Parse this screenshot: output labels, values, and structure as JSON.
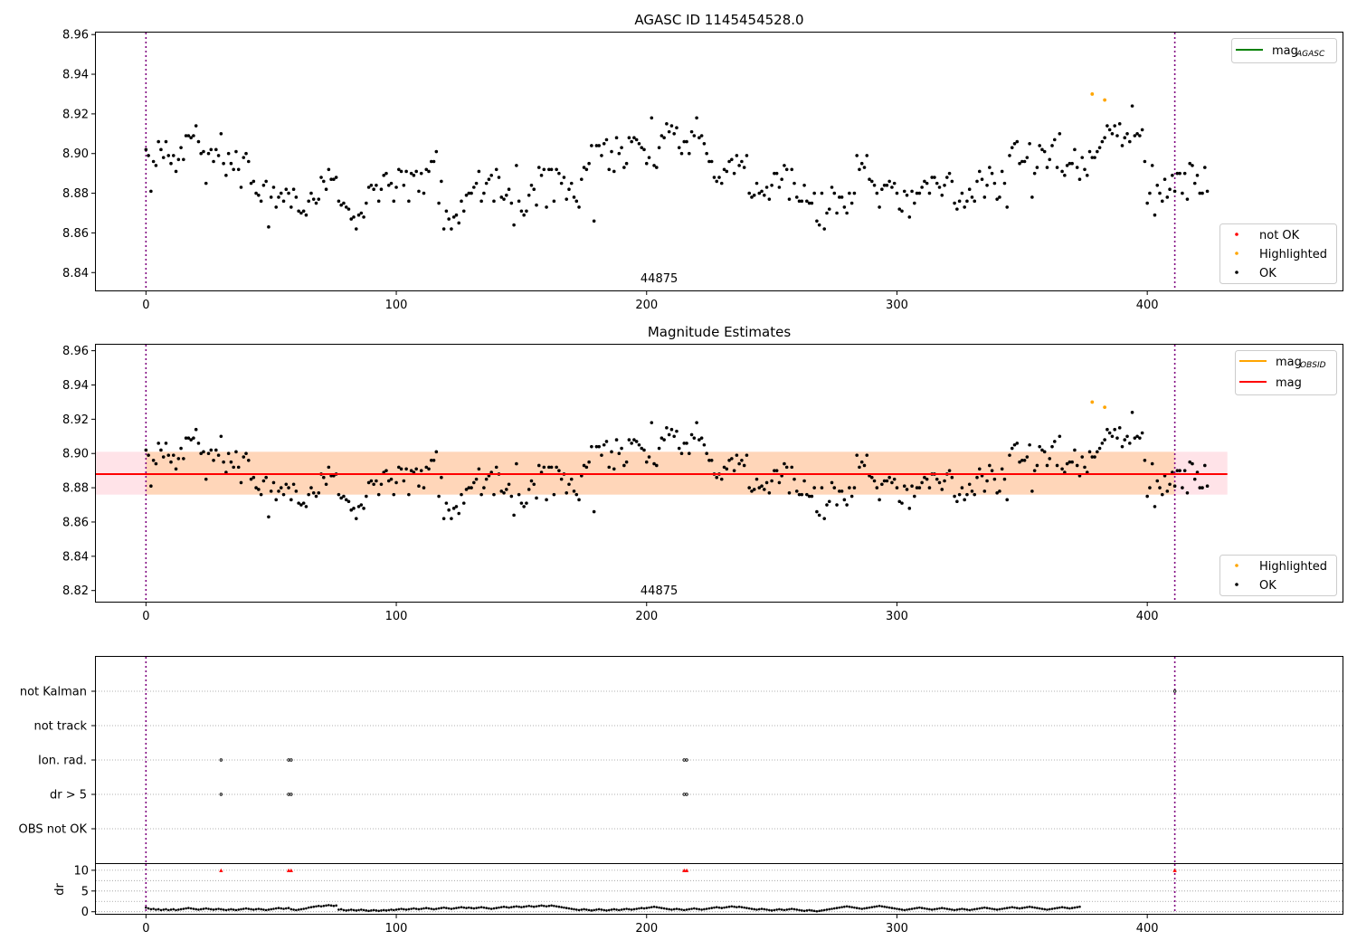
{
  "figure": {
    "title": "AGASC ID 1145454528.0",
    "obsid_label": "44875"
  },
  "chart_data": [
    {
      "id": "mag_agasc",
      "type": "scatter",
      "title": "AGASC ID 1145454528.0",
      "xlim": [
        -20,
        478
      ],
      "ylim": [
        8.831,
        8.961
      ],
      "xticks": [
        0,
        100,
        200,
        300,
        400
      ],
      "yticks": [
        8.84,
        8.86,
        8.88,
        8.9,
        8.92,
        8.94,
        8.96
      ],
      "ytick_labels": [
        "8.84",
        "8.86",
        "8.88",
        "8.90",
        "8.92",
        "8.94",
        "8.96"
      ],
      "vlines": [
        0,
        411
      ],
      "obsid_label": "44875",
      "legend_lines": [
        {
          "label": "mag",
          "sub": "AGASC",
          "color": "#008000"
        }
      ],
      "legend_points": [
        {
          "label": "not OK",
          "color": "#ff0000"
        },
        {
          "label": "Highlighted",
          "color": "#ffa500"
        },
        {
          "label": "OK",
          "color": "#000000"
        }
      ],
      "highlighted": [
        [
          378,
          8.93
        ],
        [
          383,
          8.927
        ]
      ],
      "not_ok": []
    },
    {
      "id": "mag_estimates",
      "type": "scatter",
      "title": "Magnitude Estimates",
      "xlim": [
        -20,
        478
      ],
      "ylim": [
        8.8135,
        8.9635
      ],
      "xticks": [
        0,
        100,
        200,
        300,
        400
      ],
      "yticks": [
        8.82,
        8.84,
        8.86,
        8.88,
        8.9,
        8.92,
        8.94,
        8.96
      ],
      "ytick_labels": [
        "8.82",
        "8.84",
        "8.86",
        "8.88",
        "8.90",
        "8.92",
        "8.94",
        "8.96"
      ],
      "vlines": [
        0,
        411
      ],
      "obsid_label": "44875",
      "mag": 8.888,
      "mag_band": [
        8.876,
        8.901
      ],
      "band_x": [
        -20,
        432
      ],
      "legend_lines": [
        {
          "label": "mag",
          "sub": "OBSID",
          "color": "#ffa500"
        },
        {
          "label": "mag",
          "sub": "",
          "color": "#ff0000"
        }
      ],
      "legend_points": [
        {
          "label": "Highlighted",
          "color": "#ffa500"
        },
        {
          "label": "OK",
          "color": "#000000"
        }
      ],
      "highlighted": [
        [
          378,
          8.93
        ],
        [
          383,
          8.927
        ]
      ]
    },
    {
      "id": "flags",
      "type": "scatter",
      "categories": [
        "not Kalman",
        "not track",
        "Ion. rad.",
        "dr > 5",
        "OBS not OK"
      ],
      "xlim": [
        -20,
        478
      ],
      "vlines": [
        0,
        411
      ],
      "points": {
        "not Kalman": [
          411
        ],
        "not track": [],
        "Ion. rad.": [
          30,
          57,
          58,
          215,
          216
        ],
        "dr > 5": [
          30,
          57,
          58,
          215,
          216
        ],
        "OBS not OK": []
      }
    },
    {
      "id": "dr",
      "type": "scatter",
      "ylabel": "dr",
      "xlim": [
        -20,
        478
      ],
      "ylim": [
        -0.5,
        11.5
      ],
      "xticks": [
        0,
        100,
        200,
        300,
        400
      ],
      "xtick_labels": [
        "0",
        "100",
        "200",
        "300",
        "400"
      ],
      "yticks": [
        0,
        5,
        10
      ],
      "ytick_labels": [
        "0",
        "5",
        "10"
      ],
      "vlines": [
        0,
        411
      ],
      "capped": [
        30,
        57,
        58,
        215,
        216,
        411
      ],
      "cap_value": 10
    }
  ],
  "mag_series": [
    8.902,
    8.899,
    8.881,
    8.896,
    8.894,
    8.906,
    8.902,
    8.898,
    8.906,
    8.899,
    8.895,
    8.899,
    8.891,
    8.897,
    8.903,
    8.897,
    8.909,
    8.909,
    8.908,
    8.909,
    8.914,
    8.906,
    8.9,
    8.901,
    8.885,
    8.9,
    8.902,
    8.896,
    8.902,
    8.899,
    8.91,
    8.895,
    8.889,
    8.9,
    8.895,
    8.892,
    8.901,
    8.892,
    8.883,
    8.898,
    8.9,
    8.896,
    8.885,
    8.886,
    8.88,
    8.879,
    8.876,
    8.884,
    8.886,
    8.863,
    8.878,
    8.883,
    8.873,
    8.878,
    8.88,
    8.876,
    8.882,
    8.88,
    8.873,
    8.882,
    8.878,
    8.871,
    8.87,
    8.871,
    8.869,
    8.876,
    8.88,
    8.877,
    8.875,
    8.877,
    8.888,
    8.886,
    8.882,
    8.892,
    8.887,
    8.887,
    8.888,
    8.876,
    8.874,
    8.875,
    8.873,
    8.872,
    8.867,
    8.868,
    8.862,
    8.869,
    8.87,
    8.868,
    8.875,
    8.883,
    8.884,
    8.882,
    8.884,
    8.876,
    8.882,
    8.889,
    8.89,
    8.884,
    8.885,
    8.876,
    8.883,
    8.892,
    8.891,
    8.884,
    8.891,
    8.876,
    8.89,
    8.889,
    8.891,
    8.881,
    8.89,
    8.88,
    8.892,
    8.891,
    8.896,
    8.896,
    8.901,
    8.875,
    8.886,
    8.862,
    8.871,
    8.867,
    8.862,
    8.868,
    8.869,
    8.865,
    8.876,
    8.871,
    8.879,
    8.88,
    8.88,
    8.883,
    8.885,
    8.891,
    8.876,
    8.88,
    8.885,
    8.887,
    8.889,
    8.876,
    8.892,
    8.888,
    8.878,
    8.877,
    8.879,
    8.882,
    8.875,
    8.864,
    8.894,
    8.876,
    8.871,
    8.869,
    8.871,
    8.879,
    8.884,
    8.882,
    8.874,
    8.893,
    8.889,
    8.892,
    8.873,
    8.892,
    8.892,
    8.876,
    8.892,
    8.89,
    8.885,
    8.888,
    8.877,
    8.882,
    8.885,
    8.878,
    8.876,
    8.873,
    8.887,
    8.893,
    8.892,
    8.895,
    8.904,
    8.866,
    8.904,
    8.904,
    8.899,
    8.905,
    8.907,
    8.892,
    8.901,
    8.891,
    8.908,
    8.9,
    8.903,
    8.893,
    8.895,
    8.908,
    8.906,
    8.908,
    8.907,
    8.905,
    8.903,
    8.902,
    8.895,
    8.898,
    8.918,
    8.894,
    8.893,
    8.903,
    8.909,
    8.908,
    8.915,
    8.911,
    8.914,
    8.91,
    8.913,
    8.903,
    8.9,
    8.906,
    8.906,
    8.9,
    8.911,
    8.909,
    8.918,
    8.908,
    8.909,
    8.905,
    8.9,
    8.896,
    8.896,
    8.888,
    8.886,
    8.888,
    8.885,
    8.892,
    8.891,
    8.896,
    8.897,
    8.89,
    8.899,
    8.894,
    8.896,
    8.893,
    8.899,
    8.88,
    8.878,
    8.879,
    8.885,
    8.88,
    8.881,
    8.879,
    8.883,
    8.877,
    8.884,
    8.89,
    8.89,
    8.883,
    8.887,
    8.894,
    8.892,
    8.877,
    8.892,
    8.885,
    8.878,
    8.876,
    8.876,
    8.884,
    8.876,
    8.875,
    8.875,
    8.88,
    8.866,
    8.864,
    8.88,
    8.862,
    8.87,
    8.872,
    8.883,
    8.88,
    8.87,
    8.878,
    8.878,
    8.873,
    8.87,
    8.88,
    8.875,
    8.88,
    8.899,
    8.892,
    8.895,
    8.893,
    8.899,
    8.887,
    8.886,
    8.884,
    8.88,
    8.873,
    8.882,
    8.884,
    8.884,
    8.886,
    8.883,
    8.885,
    8.88,
    8.872,
    8.871,
    8.881,
    8.879,
    8.868,
    8.881,
    8.875,
    8.88,
    8.88,
    8.883,
    8.886,
    8.885,
    8.88,
    8.888,
    8.888,
    8.885,
    8.883,
    8.879,
    8.884,
    8.888,
    8.89,
    8.886,
    8.875,
    8.872,
    8.876,
    8.88,
    8.873,
    8.876,
    8.882,
    8.878,
    8.876,
    8.886,
    8.891,
    8.887,
    8.878,
    8.884,
    8.893,
    8.89,
    8.885,
    8.877,
    8.878,
    8.891,
    8.885,
    8.873,
    8.899,
    8.903,
    8.905,
    8.906,
    8.895,
    8.896,
    8.896,
    8.898,
    8.905,
    8.878,
    8.89,
    8.893,
    8.904,
    8.902,
    8.901,
    8.893,
    8.897,
    8.904,
    8.907,
    8.893,
    8.91,
    8.891,
    8.889,
    8.894,
    8.895,
    8.895,
    8.902,
    8.893,
    8.887,
    8.898,
    8.892,
    8.889,
    8.901,
    8.898,
    8.898,
    8.901,
    8.903,
    8.906,
    8.908,
    8.914,
    8.912,
    8.91,
    8.914,
    8.909,
    8.915,
    8.904,
    8.908,
    8.91,
    8.906,
    8.924,
    8.909,
    8.91,
    8.909,
    8.912,
    8.896,
    8.875,
    8.88,
    8.894,
    8.869,
    8.884,
    8.88,
    8.876,
    8.887,
    8.878,
    8.882,
    8.889,
    8.881,
    8.89,
    8.89,
    8.88,
    8.89,
    8.877,
    8.895,
    8.894,
    8.885,
    8.889,
    8.88,
    8.88,
    8.893,
    8.881
  ],
  "dr_series": [
    1.0,
    0.8,
    0.6,
    0.7,
    0.5,
    0.6,
    0.4,
    0.5,
    0.6,
    0.4,
    0.5,
    0.6,
    0.4,
    0.5,
    0.6,
    0.7,
    0.8,
    0.9,
    0.8,
    0.7,
    0.6,
    0.5,
    0.6,
    0.7,
    0.8,
    0.7,
    0.6,
    0.5,
    0.6,
    0.7,
    0.6,
    0.5,
    0.4,
    0.5,
    0.6,
    0.5,
    0.4,
    0.5,
    0.6,
    0.7,
    0.8,
    0.7,
    0.6,
    0.5,
    0.6,
    0.7,
    0.6,
    0.5,
    0.4,
    0.5,
    0.6,
    0.7,
    0.8,
    0.9,
    0.8,
    0.7,
    0.8,
    0.9,
    0.6,
    0.5,
    0.4,
    0.5,
    0.6,
    0.7,
    0.8,
    1.0,
    1.1,
    1.2,
    1.3,
    1.4,
    1.3,
    1.4,
    1.5,
    1.6,
    1.5,
    1.4,
    1.5,
    0.5,
    0.6,
    0.4,
    0.3,
    0.4,
    0.5,
    0.4,
    0.3,
    0.4,
    0.5,
    0.4,
    0.3,
    0.2,
    0.3,
    0.4,
    0.3,
    0.2,
    0.3,
    0.4,
    0.3,
    0.4,
    0.5,
    0.4,
    0.5,
    0.6,
    0.7,
    0.6,
    0.5,
    0.6,
    0.7,
    0.8,
    0.7,
    0.6,
    0.7,
    0.8,
    0.9,
    0.8,
    0.7,
    0.6,
    0.7,
    0.8,
    0.9,
    1.0,
    0.9,
    0.8,
    0.7,
    0.8,
    0.9,
    1.0,
    1.1,
    1.0,
    0.9,
    1.0,
    0.9,
    0.8,
    0.9,
    1.0,
    1.1,
    1.0,
    0.9,
    0.8,
    0.7,
    0.8,
    0.9,
    1.0,
    1.1,
    1.2,
    1.1,
    1.0,
    1.1,
    1.2,
    1.3,
    1.2,
    1.1,
    1.2,
    1.3,
    1.4,
    1.3,
    1.2,
    1.3,
    1.4,
    1.5,
    1.4,
    1.3,
    1.4,
    1.5,
    1.4,
    1.3,
    1.2,
    1.1,
    1.0,
    0.9,
    0.8,
    0.7,
    0.6,
    0.5,
    0.4,
    0.5,
    0.6,
    0.5,
    0.4,
    0.3,
    0.4,
    0.5,
    0.6,
    0.5,
    0.4,
    0.3,
    0.4,
    0.5,
    0.6,
    0.5,
    0.4,
    0.5,
    0.6,
    0.7,
    0.6,
    0.5,
    0.6,
    0.7,
    0.8,
    0.9,
    0.8,
    0.9,
    1.0,
    1.1,
    1.2,
    1.1,
    1.0,
    0.9,
    0.8,
    0.7,
    0.6,
    0.5,
    0.6,
    0.7,
    0.6,
    0.5,
    0.4,
    0.5,
    0.6,
    0.7,
    0.8,
    0.7,
    0.6,
    0.5,
    0.6,
    0.7,
    0.8,
    0.9,
    1.0,
    1.1,
    1.0,
    0.9,
    1.0,
    1.1,
    1.2,
    1.3,
    1.2,
    1.1,
    1.2,
    1.1,
    1.0,
    0.9,
    0.8,
    0.7,
    0.6,
    0.5,
    0.6,
    0.7,
    0.6,
    0.5,
    0.4,
    0.3,
    0.4,
    0.5,
    0.6,
    0.5,
    0.4,
    0.5,
    0.6,
    0.7,
    0.6,
    0.5,
    0.4,
    0.3,
    0.2,
    0.3,
    0.4,
    0.3,
    0.2,
    0.1,
    0.2,
    0.3,
    0.4,
    0.5,
    0.6,
    0.7,
    0.8,
    0.9,
    1.0,
    1.1,
    1.2,
    1.3,
    1.2,
    1.1,
    1.0,
    0.9,
    0.8,
    0.7,
    0.8,
    0.9,
    1.0,
    1.1,
    1.2,
    1.3,
    1.4,
    1.3,
    1.2,
    1.1,
    1.0,
    0.9,
    0.8,
    0.7,
    0.6,
    0.5,
    0.4,
    0.5,
    0.6,
    0.7,
    0.8,
    0.9,
    1.0,
    0.9,
    0.8,
    0.7,
    0.6,
    0.5,
    0.6,
    0.7,
    0.8,
    0.9,
    0.8,
    0.7,
    0.6,
    0.5,
    0.4,
    0.5,
    0.6,
    0.7,
    0.6,
    0.5,
    0.4,
    0.5,
    0.6,
    0.7,
    0.8,
    0.9,
    1.0,
    0.9,
    0.8,
    0.7,
    0.6,
    0.5,
    0.6,
    0.7,
    0.8,
    0.9,
    1.0,
    1.1,
    1.0,
    0.9,
    0.8,
    0.9,
    1.0,
    1.1,
    1.2,
    1.1,
    1.0,
    0.9,
    0.8,
    0.7,
    0.6,
    0.5,
    0.6,
    0.7,
    0.8,
    0.9,
    1.0,
    1.1,
    1.0,
    0.9,
    0.8,
    0.9,
    1.0,
    1.1,
    1.2
  ]
}
